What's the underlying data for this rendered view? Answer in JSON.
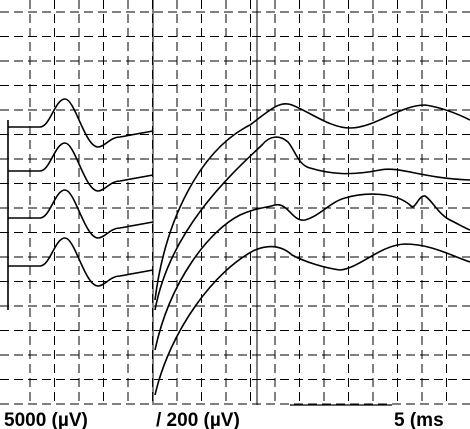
{
  "labels": {
    "left_sensitivity": "5000  (µV)",
    "right_sensitivity": "/ 200  (µV)",
    "time_scale": "5  (ms"
  }
}
